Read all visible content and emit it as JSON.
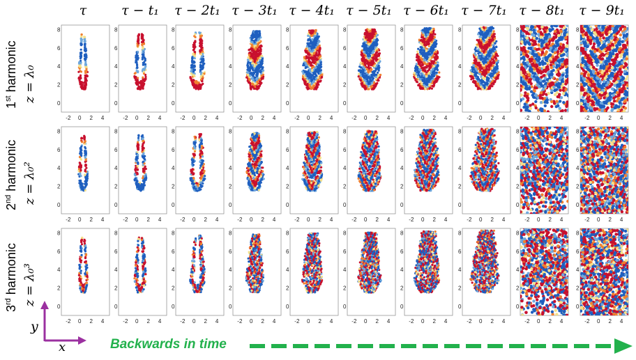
{
  "columns": [
    "τ",
    "τ − t₁",
    "τ − 2t₁",
    "τ − 3t₁",
    "τ − 4t₁",
    "τ − 5t₁",
    "τ − 6t₁",
    "τ − 7t₁",
    "τ − 8t₁",
    "τ − 9t₁"
  ],
  "rows": [
    {
      "harmonic_num": "1",
      "harmonic_sup": "st",
      "harmonic_word": " harmonic",
      "z_label": "z = λ₀"
    },
    {
      "harmonic_num": "2",
      "harmonic_sup": "nd",
      "harmonic_word": " harmonic",
      "z_label": "z = λ₀²"
    },
    {
      "harmonic_num": "3",
      "harmonic_sup": "rd",
      "harmonic_word": " harmonic",
      "z_label": "z = λ₀³"
    }
  ],
  "y_ticks": [
    "0",
    "2",
    "4",
    "6",
    "8"
  ],
  "x_ticks_default": [
    "-2",
    "0",
    "2",
    "4"
  ],
  "x_ticks_last": [
    "-2",
    "0",
    "2",
    "4"
  ],
  "axes_legend": {
    "y": "y",
    "x": "x"
  },
  "bottom_caption": "Backwards in time",
  "colors": {
    "red": "#c8102e",
    "blue": "#1f5fbf",
    "arrow_green": "#22b14c",
    "axes_purple": "#9b30a0"
  }
}
